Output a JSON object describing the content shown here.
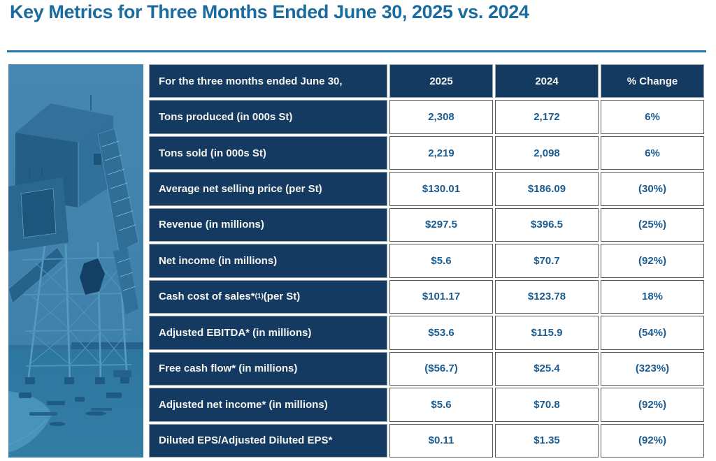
{
  "page": {
    "title": "Key Metrics for Three Months Ended June 30, 2025 vs. 2024"
  },
  "colors": {
    "title_blue": "#1A6B9E",
    "rule_blue": "#2477AB",
    "navy": "#153A61",
    "navy_border": "#97A1AB",
    "value_blue": "#1B5C90",
    "cell_border": "#595959",
    "label_text": "#F4F4EF"
  },
  "photo": {
    "description": "blue duotone photo of a mine headframe structure on a construction site"
  },
  "table": {
    "header": {
      "label": "For the three months ended June 30,",
      "col_2025": "2025",
      "col_2024": "2024",
      "col_change": "% Change"
    },
    "rows": [
      {
        "label": "Tons produced (in 000s St)",
        "v2025": "2,308",
        "v2024": "2,172",
        "change": "6%"
      },
      {
        "label": "Tons sold  (in 000s St)",
        "v2025": "2,219",
        "v2024": "2,098",
        "change": "6%"
      },
      {
        "label": "Average net selling price (per St)",
        "v2025": "$130.01",
        "v2024": "$186.09",
        "change": "(30%)"
      },
      {
        "label": "Revenue (in millions)",
        "v2025": "$297.5",
        "v2024": "$396.5",
        "change": "(25%)"
      },
      {
        "label": "Net income (in millions)",
        "v2025": "$5.6",
        "v2024": "$70.7",
        "change": "(92%)"
      },
      {
        "label": "Cash cost of sales*(1) (per St)",
        "label_pre": "Cash cost of sales*",
        "label_sup": "(1)",
        "label_post": " (per St)",
        "v2025": "$101.17",
        "v2024": "$123.78",
        "change": "18%"
      },
      {
        "label": "Adjusted EBITDA* (in millions)",
        "v2025": "$53.6",
        "v2024": "$115.9",
        "change": "(54%)"
      },
      {
        "label": "Free cash flow* (in millions)",
        "v2025": "($56.7)",
        "v2024": "$25.4",
        "change": "(323%)"
      },
      {
        "label": "Adjusted net income* (in millions)",
        "v2025": "$5.6",
        "v2024": "$70.8",
        "change": "(92%)"
      },
      {
        "label": "Diluted EPS/Adjusted Diluted EPS*",
        "v2025": "$0.11",
        "v2024": "$1.35",
        "change": "(92%)"
      }
    ]
  }
}
